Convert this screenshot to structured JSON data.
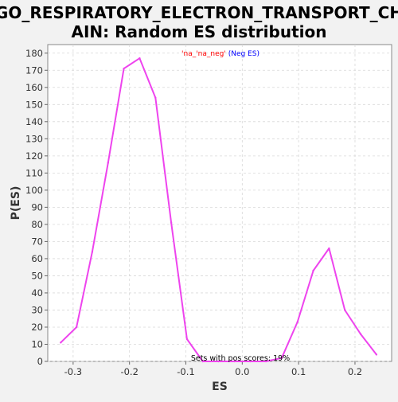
{
  "chart_data": {
    "type": "line",
    "title_lines": [
      "GO_RESPIRATORY_ELECTRON_TRANSPORT_CH",
      "AIN: Random ES distribution"
    ],
    "xlabel": "ES",
    "ylabel": "P(ES)",
    "xlim": [
      -0.345,
      0.265
    ],
    "ylim": [
      0,
      185
    ],
    "xticks": [
      -0.3,
      -0.2,
      -0.1,
      0.0,
      0.1,
      0.2
    ],
    "xtick_labels": [
      "-0.3",
      "-0.2",
      "-0.1",
      "0.0",
      "0.1",
      "0.2"
    ],
    "yticks": [
      0,
      10,
      20,
      30,
      40,
      50,
      60,
      70,
      80,
      90,
      100,
      110,
      120,
      130,
      140,
      150,
      160,
      170,
      180
    ],
    "ytick_labels": [
      "0",
      "10",
      "20",
      "30",
      "40",
      "50",
      "60",
      "70",
      "80",
      "90",
      "100",
      "110",
      "120",
      "130",
      "140",
      "150",
      "160",
      "170",
      "180"
    ],
    "grid": true,
    "legend": {
      "placement": "top-center",
      "part1": "'na_'na_neg'",
      "part2": " (Neg ES)",
      "color1": "#ff0000",
      "color2": "#0000ff"
    },
    "annotation": "Sets with pos scores: 19%",
    "series": [
      {
        "color": "#ee44ee",
        "x": [
          -0.322,
          -0.294,
          -0.266,
          -0.238,
          -0.21,
          -0.182,
          -0.154,
          -0.126,
          -0.098,
          -0.07,
          -0.042,
          -0.014,
          0.014,
          0.042,
          0.07,
          0.098,
          0.126,
          0.154,
          0.182,
          0.21,
          0.238
        ],
        "y": [
          11,
          20,
          64,
          116,
          171,
          177,
          154,
          81,
          13,
          0,
          0,
          0,
          0,
          0,
          2,
          23,
          53,
          66,
          30,
          16,
          4
        ]
      }
    ]
  }
}
